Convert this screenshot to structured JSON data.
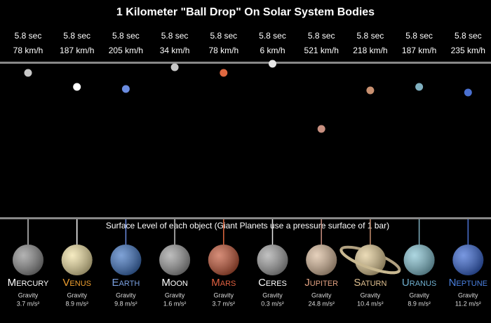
{
  "title": "1 Kilometer \"Ball Drop\" On Solar System Bodies",
  "caption": "Surface Level of each object (Giant Planets use a pressure surface of 1 bar)",
  "gravity_label": "Gravity",
  "columns": [
    {
      "time": "5.8 sec",
      "speed": "78 km/h",
      "name": "Mercury",
      "gravity": "3.7 m/s²"
    },
    {
      "time": "5.8 sec",
      "speed": "187 km/h",
      "name": "Venus",
      "gravity": "8.9 m/s²"
    },
    {
      "time": "5.8 sec",
      "speed": "205 km/h",
      "name": "Earth",
      "gravity": "9.8 m/s²"
    },
    {
      "time": "5.8 sec",
      "speed": "34 km/h",
      "name": "Moon",
      "gravity": "1.6 m/s²"
    },
    {
      "time": "5.8 sec",
      "speed": "78 km/h",
      "name": "Mars",
      "gravity": "3.7 m/s²"
    },
    {
      "time": "5.8 sec",
      "speed": "6 km/h",
      "name": "Ceres",
      "gravity": "0.3 m/s²"
    },
    {
      "time": "5.8 sec",
      "speed": "521 km/h",
      "name": "Jupiter",
      "gravity": "24.8 m/s²"
    },
    {
      "time": "5.8 sec",
      "speed": "218 km/h",
      "name": "Saturn",
      "gravity": "10.4 m/s²"
    },
    {
      "time": "5.8 sec",
      "speed": "187 km/h",
      "name": "Uranus",
      "gravity": "8.9 m/s²"
    },
    {
      "time": "5.8 sec",
      "speed": "235 km/h",
      "name": "Neptune",
      "gravity": "11.2 m/s²"
    }
  ]
}
